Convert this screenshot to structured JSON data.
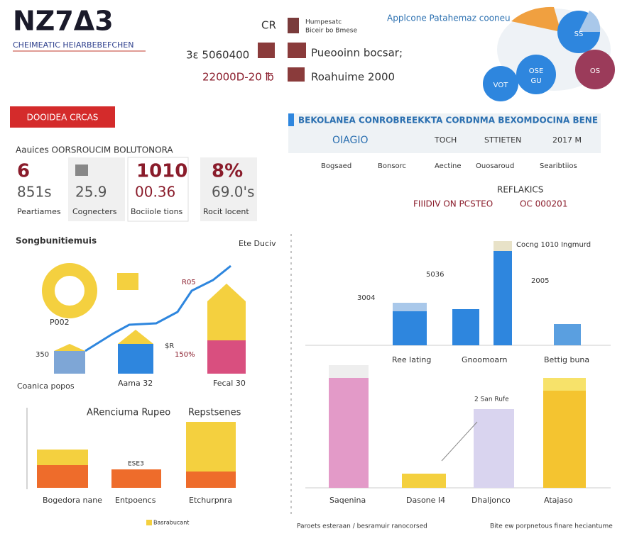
{
  "header": {
    "logo": "NZ7Δ3",
    "subtitle": "CHEIMEATIC HEIARBEBEFCHEN",
    "code": "CR",
    "legend": [
      "Humpesatc",
      "Biceir bo Bmese"
    ],
    "stat_a": "3ɛ 5060400",
    "stat_b": "22000D-20 ℔",
    "info_a": "Pueooinn bocsar;",
    "info_b": "Roahuime 2000",
    "pie_title": "Applcone Patahemaz cooneu",
    "pie_labels": [
      "SS",
      "OSE",
      "GU",
      "OS",
      "VOT"
    ]
  },
  "summary": {
    "banner": "DOOIDEA CRCAS",
    "heading": "Aauices OORSROUCIM BOLUTONORA",
    "stats": [
      {
        "top": "6",
        "bottom": "851s",
        "label": "Peartiames"
      },
      {
        "top": "",
        "bottom": "25.9",
        "label": "Cognecters"
      },
      {
        "top": "1010",
        "bottom": "00.36",
        "label": "Bociiole tions"
      },
      {
        "top": "8%",
        "bottom": "69.0's",
        "label": "Rocit locent"
      }
    ]
  },
  "tabs": {
    "banner": "BEKOLANEA CONROBREEKKTA CORDNMA BEXOMDOCINA BENE",
    "items": [
      "OIAGIO",
      "TOCH",
      "STTIETEN",
      "2017 M"
    ],
    "labels": [
      "Bogsaed",
      "Bonsorc",
      "Aectine",
      "Ouosaroud",
      "Searibtiios"
    ],
    "ref_title": "REFLAKICS",
    "ref_a": "FIIIDIV ON PCSTEO",
    "ref_b": "OC 000201"
  },
  "left_chart": {
    "title": "Songbunitiemuis",
    "note": "Ete Duciv",
    "donut": "P002",
    "labels": [
      "350",
      "R05",
      "$R",
      "150%"
    ],
    "categories": [
      "Coanica popos",
      "Aama 32",
      "Fecal 30"
    ]
  },
  "lower_left": {
    "title": "ARenciuma Rupeo",
    "title_b": "Repstsenes",
    "label": "ESE3",
    "categories": [
      "Bogedora nane",
      "Entpoencs",
      "Etchurpnra"
    ],
    "legend": "Basrabucant"
  },
  "right_top": {
    "labels": [
      "3004",
      "5036",
      "2005",
      "Cocng 1010 Ingmurd"
    ],
    "categories": [
      "Ree lating",
      "Gnoomoarn",
      "Bettig buna"
    ]
  },
  "right_bottom": {
    "note": "2 San Rufe",
    "categories": [
      "Saqenina",
      "Dasone I4",
      "Dhaljonco",
      "Atajaso"
    ],
    "footer_a": "Paroets esteraan / besramuir ranocorsed",
    "footer_b": "Bite ew porpnetous finare heciantume"
  }
}
